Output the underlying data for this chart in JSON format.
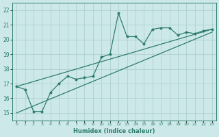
{
  "xlabel": "Humidex (Indice chaleur)",
  "xlim": [
    -0.5,
    23.5
  ],
  "ylim": [
    14.5,
    22.5
  ],
  "yticks": [
    15,
    16,
    17,
    18,
    19,
    20,
    21,
    22
  ],
  "xticks": [
    0,
    1,
    2,
    3,
    4,
    5,
    6,
    7,
    8,
    9,
    10,
    11,
    12,
    13,
    14,
    15,
    16,
    17,
    18,
    19,
    20,
    21,
    22,
    23
  ],
  "xtick_labels": [
    "0",
    "1",
    "2",
    "3",
    "4",
    "5",
    "6",
    "7",
    "8",
    "9",
    "10",
    "11",
    "12",
    "13",
    "14",
    "15",
    "16",
    "17",
    "18",
    "19",
    "20",
    "21",
    "22",
    "23"
  ],
  "line_color": "#2d7d6d",
  "bg_color": "#cce8e8",
  "grid_color": "#aacccc",
  "series_x": [
    0,
    1,
    2,
    3,
    4,
    5,
    6,
    7,
    8,
    9,
    10,
    11,
    12,
    13,
    14,
    15,
    16,
    17,
    18,
    19,
    20,
    21,
    22,
    23
  ],
  "series_y": [
    16.8,
    16.6,
    15.1,
    15.1,
    16.4,
    17.0,
    17.5,
    17.3,
    17.4,
    17.5,
    18.8,
    19.0,
    21.8,
    20.2,
    20.2,
    19.7,
    20.7,
    20.8,
    20.8,
    20.3,
    20.5,
    20.4,
    20.6,
    20.7
  ],
  "trend1_x": [
    0,
    23
  ],
  "trend1_y": [
    16.8,
    20.7
  ],
  "trend2_x": [
    0,
    23
  ],
  "trend2_y": [
    15.0,
    20.5
  ],
  "marker_size": 2.5,
  "line_width": 0.9
}
